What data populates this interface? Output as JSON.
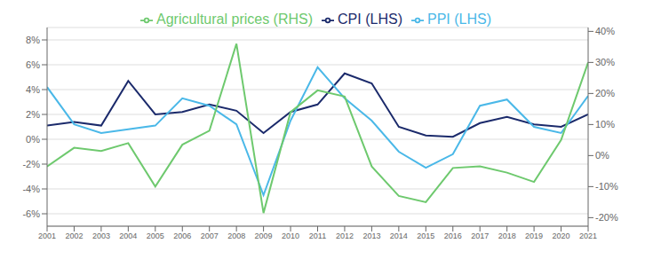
{
  "chart_data": {
    "type": "line",
    "x": [
      2001,
      2002,
      2003,
      2004,
      2005,
      2006,
      2007,
      2008,
      2009,
      2010,
      2011,
      2012,
      2013,
      2014,
      2015,
      2016,
      2017,
      2018,
      2019,
      2020,
      2021
    ],
    "xlim": [
      2001,
      2021
    ],
    "xticks": [
      2001,
      2002,
      2003,
      2004,
      2005,
      2006,
      2007,
      2008,
      2009,
      2010,
      2011,
      2012,
      2013,
      2014,
      2015,
      2016,
      2017,
      2018,
      2019,
      2020,
      2021
    ],
    "ylim": [
      -7,
      9
    ],
    "yticks": [
      {
        "value": -6,
        "label": "-6%"
      },
      {
        "value": -4,
        "label": "-4%"
      },
      {
        "value": -2,
        "label": "-2%"
      },
      {
        "value": 0,
        "label": "0%"
      },
      {
        "value": 2,
        "label": "2%"
      },
      {
        "value": 4,
        "label": "4%"
      },
      {
        "value": 6,
        "label": "6%"
      },
      {
        "value": 8,
        "label": "8%"
      }
    ],
    "y2lim": [
      -22.75,
      41.25
    ],
    "y2ticks": [
      {
        "value": -20,
        "label": "-20%"
      },
      {
        "value": -10,
        "label": "-10%"
      },
      {
        "value": 0,
        "label": "0%"
      },
      {
        "value": 10,
        "label": "10%"
      },
      {
        "value": 20,
        "label": "20%"
      },
      {
        "value": 30,
        "label": "30%"
      },
      {
        "value": 40,
        "label": "40%"
      }
    ],
    "grid": true,
    "legend": "top",
    "series": [
      {
        "name": "CPI (LHS)",
        "color": "#1b2a6b",
        "values": [
          1.1,
          1.4,
          1.1,
          4.7,
          2.0,
          2.2,
          2.8,
          2.3,
          0.5,
          2.2,
          2.8,
          5.3,
          4.5,
          1.0,
          0.3,
          0.2,
          1.3,
          1.8,
          1.2,
          1.0,
          2.0
        ]
      },
      {
        "name": "PPI (LHS)",
        "color": "#4ab8e8",
        "values": [
          4.2,
          1.2,
          0.5,
          0.8,
          1.1,
          3.3,
          2.7,
          1.2,
          -4.5,
          1.5,
          5.8,
          3.3,
          1.5,
          -1.0,
          -2.3,
          -1.2,
          2.7,
          3.2,
          1.0,
          0.5,
          3.5
        ]
      },
      {
        "name": "Agricultural prices (RHS)",
        "color": "#6ec96e",
        "axis": "y2",
        "values": [
          -3.5,
          2.5,
          1.5,
          4.0,
          -10.0,
          3.5,
          8.0,
          36.0,
          -18.5,
          14.0,
          21.0,
          19.0,
          -3.5,
          -13.0,
          -15.0,
          -4.0,
          -3.5,
          -5.5,
          -8.5,
          5.0,
          30.0
        ]
      }
    ]
  }
}
